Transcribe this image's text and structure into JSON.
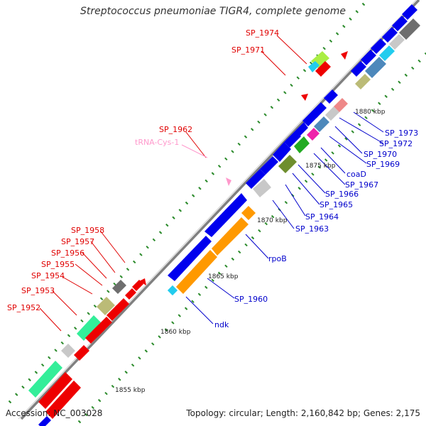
{
  "title": "Streptococcus pneumoniae TIGR4, complete genome",
  "footer": {
    "accession": "Accession: NC_003028",
    "summary": "Topology: circular; Length: 2,160,842 bp; Genes: 2,175"
  },
  "ticks": [
    "1855 kbp",
    "1860 kbp",
    "1865 kbp",
    "1870 kbp",
    "1875 kbp",
    "1880 kbp"
  ],
  "labels_reverse": [
    "SP_1974",
    "SP_1971",
    "SP_1962",
    "SP_1958",
    "SP_1957",
    "SP_1956",
    "SP_1955",
    "SP_1954",
    "SP_1953",
    "SP_1952"
  ],
  "labels_forward": [
    "SP_1973",
    "SP_1972",
    "SP_1970",
    "SP_1969",
    "coaD",
    "SP_1967",
    "SP_1966",
    "SP_1965",
    "SP_1964",
    "SP_1963",
    "rpoB",
    "SP_1960",
    "ndk"
  ],
  "labels_rna": [
    "tRNA-Cys-1"
  ],
  "colors": {
    "forward_gene": "#0000ee",
    "reverse_gene": "#ee0000",
    "backbone": "#808080",
    "tick": "#2a8a2a",
    "orange_gene": "#ff9900",
    "mint_gene": "#33ee99",
    "khaki_gene": "#bbbb77",
    "steel_gene": "#4d88bb",
    "cyan_gene": "#22ccee",
    "grey_gene": "#c8c8c8",
    "dark_grey_gene": "#6e6e6e",
    "olive_gene": "#6e8e2e",
    "magenta_gene": "#ee22aa",
    "pink_gene": "#ee8888",
    "lime_gene": "#aaee44",
    "green_gene": "#22aa22"
  }
}
